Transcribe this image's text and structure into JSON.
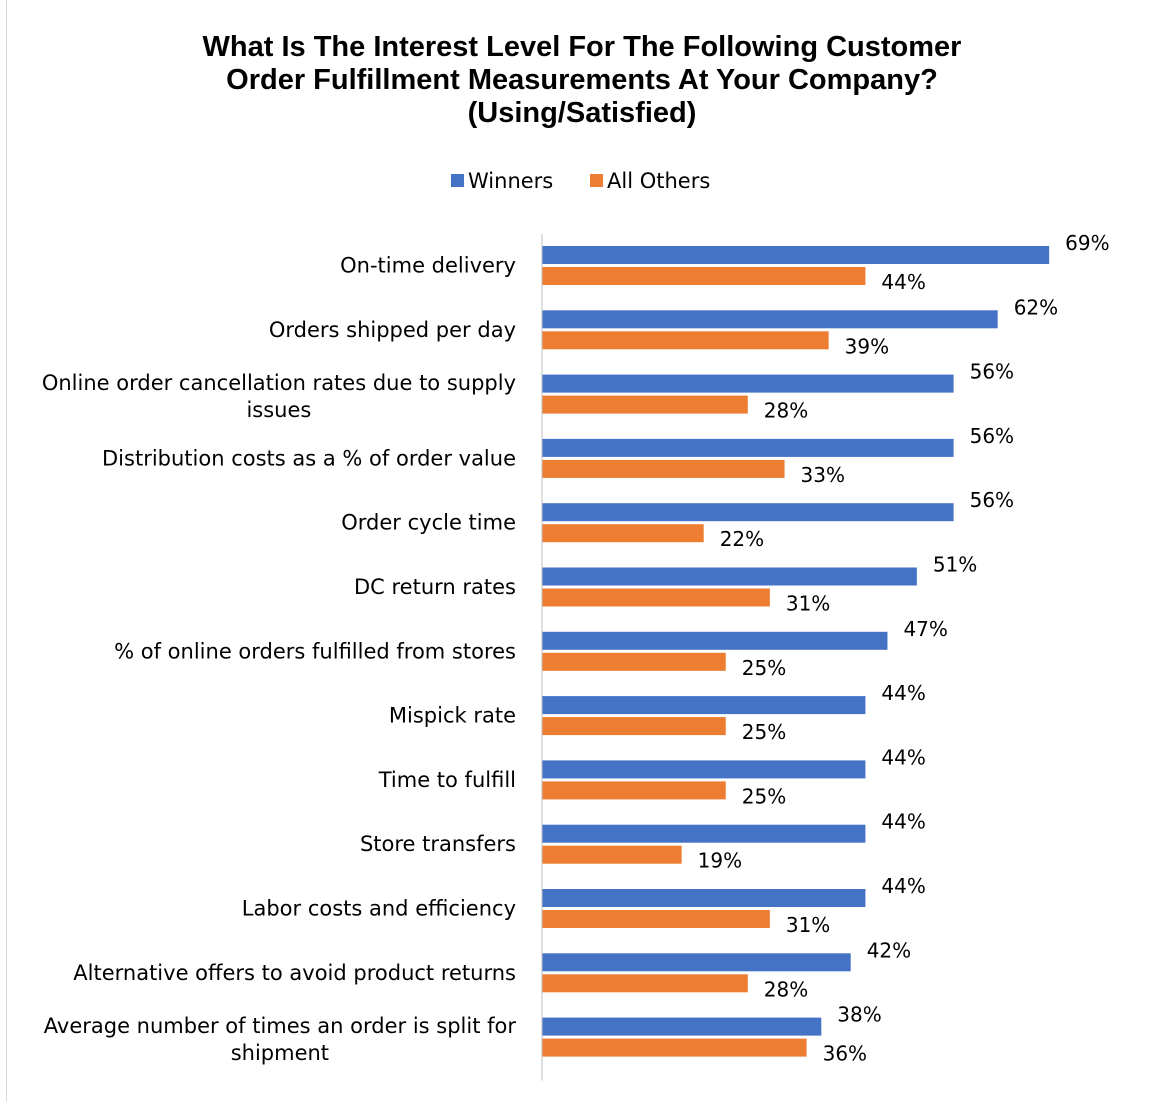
{
  "chart_data": {
    "type": "bar",
    "orientation": "horizontal",
    "title": [
      "What Is The Interest Level For The Following Customer",
      "Order Fulfillment Measurements At Your Company?",
      "(Using/Satisfied)"
    ],
    "legend_position": "top-center",
    "grid": false,
    "xlim": [
      0,
      70
    ],
    "categories": [
      [
        "On-time delivery"
      ],
      [
        "Orders shipped per day"
      ],
      [
        "Online order cancellation rates due to supply",
        "issues"
      ],
      [
        "Distribution costs as a % of order value"
      ],
      [
        "Order cycle time"
      ],
      [
        "DC return rates"
      ],
      [
        "% of online orders fulfilled from stores"
      ],
      [
        "Mispick rate"
      ],
      [
        "Time to fulfill"
      ],
      [
        "Store transfers"
      ],
      [
        "Labor costs and efficiency"
      ],
      [
        "Alternative offers to avoid product returns"
      ],
      [
        "Average number of times an order is split for",
        "shipment"
      ]
    ],
    "series": [
      {
        "name": "Winners",
        "color": "#4472C4",
        "values": [
          69,
          62,
          56,
          56,
          56,
          51,
          47,
          44,
          44,
          44,
          44,
          42,
          38
        ]
      },
      {
        "name": "All Others",
        "color": "#ED7D31",
        "values": [
          44,
          39,
          28,
          33,
          22,
          31,
          25,
          25,
          25,
          19,
          31,
          28,
          36
        ]
      }
    ],
    "value_suffix": "%"
  }
}
